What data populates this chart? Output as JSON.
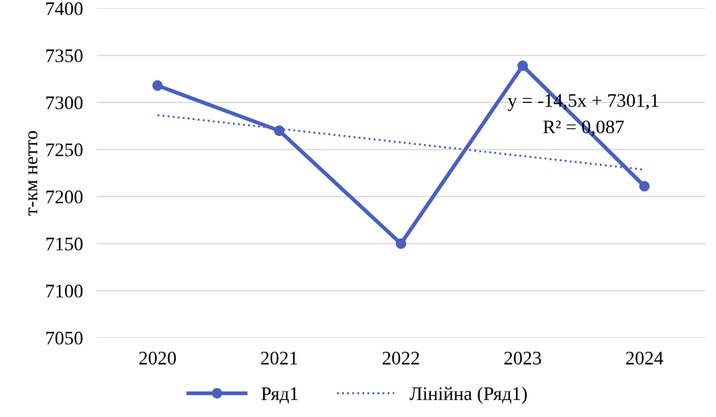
{
  "chart_data": {
    "type": "line",
    "ylabel": "т-км нетто",
    "categories": [
      "2020",
      "2021",
      "2022",
      "2023",
      "2024"
    ],
    "series": [
      {
        "name": "Ряд1",
        "color": "#4a5fc1",
        "values": [
          7318,
          7270,
          7150,
          7339,
          7211
        ],
        "marker": "circle",
        "line_style": "solid"
      },
      {
        "name": "Лінійна (Ряд1)",
        "color": "#4a5fc1",
        "values": [
          7286.6,
          7272.1,
          7257.6,
          7243.1,
          7228.6
        ],
        "marker": "none",
        "line_style": "dotted"
      }
    ],
    "annotations": [
      "y = -14,5x + 7301,1",
      "R² = 0,087"
    ],
    "ylim": [
      7050,
      7400
    ],
    "yticks": [
      7050,
      7100,
      7150,
      7200,
      7250,
      7300,
      7350,
      7400
    ],
    "grid": "y",
    "legend": "bottom"
  }
}
